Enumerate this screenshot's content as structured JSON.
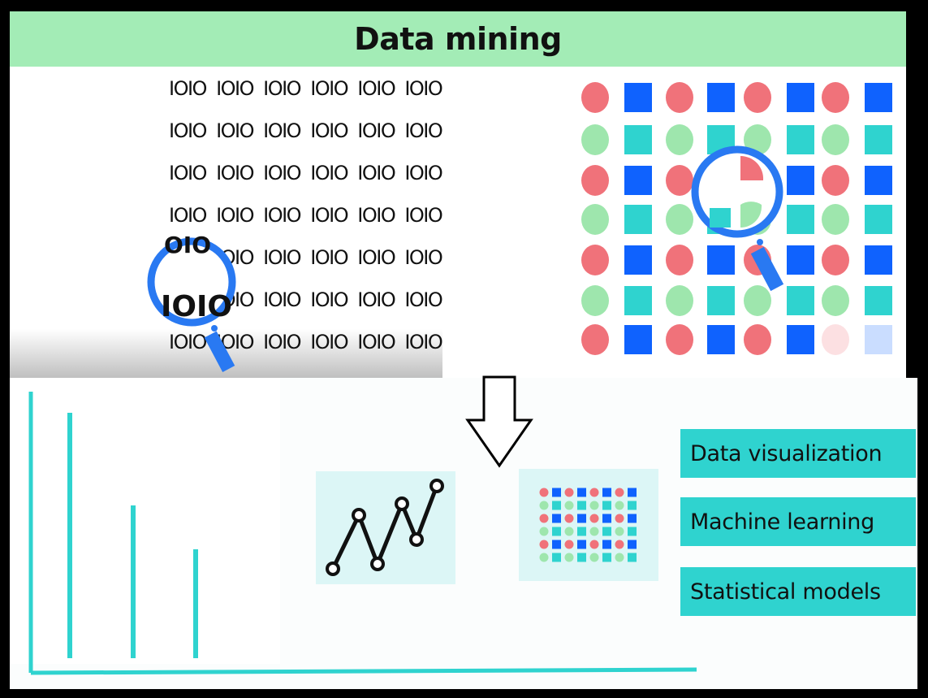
{
  "title": "Data mining",
  "binary": {
    "token": "IOIO",
    "rows": 7,
    "cols": 6,
    "magnified_top": "OIO",
    "magnified_text": "IOIO"
  },
  "methods": [
    "Data visualization",
    "Machine learning",
    "Statistical models"
  ],
  "colors": {
    "title_bg": "#a3ecb6",
    "red": "#f0727a",
    "blue": "#0f62fe",
    "green": "#9ee6ad",
    "teal": "#2fd3cf",
    "light_teal": "#dcf6f6",
    "magnifier": "#2979f2"
  },
  "icons": {
    "arrow_right": "arrow-right-icon",
    "arrow_down": "arrow-down-icon",
    "magnifier": "magnifier-icon",
    "line_chart": "line-chart-icon",
    "dot_grid": "dot-grid-icon"
  }
}
